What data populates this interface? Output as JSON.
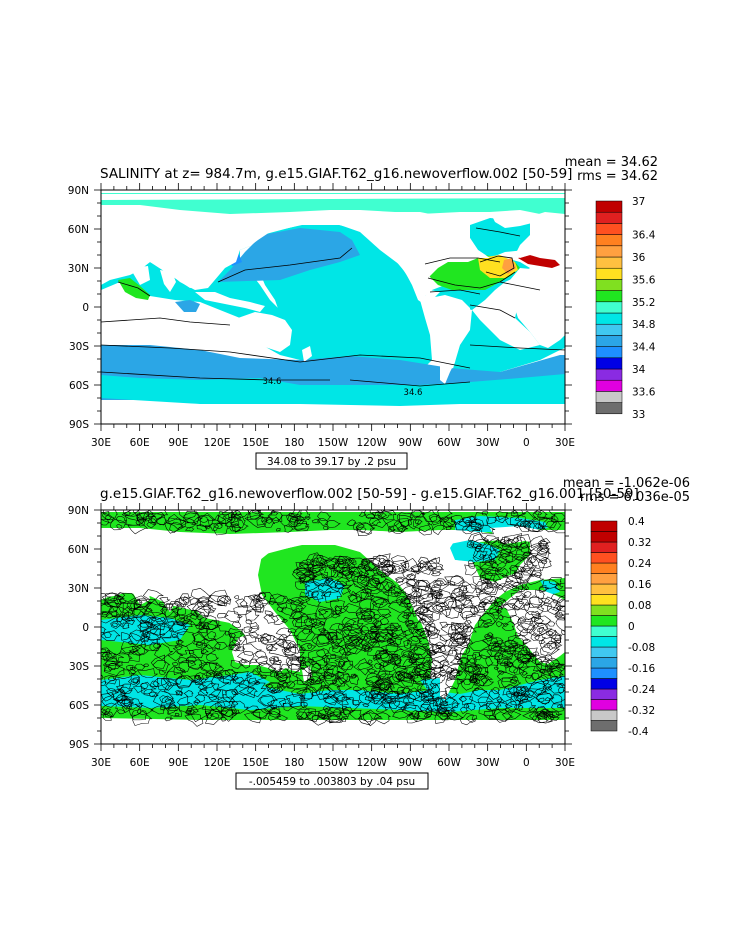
{
  "panels": [
    {
      "title": "SALINITY at z= 984.7m, g.e15.GIAF.T62_g16.newoverflow.002 [50-59]",
      "mean_text": "mean = 34.62",
      "rms_text": "rms = 34.62",
      "range_text": "34.08 to 39.17 by .2 psu",
      "lat_labels": [
        "90N",
        "60N",
        "30N",
        "0",
        "30S",
        "60S",
        "90S"
      ],
      "lon_labels": [
        "30E",
        "60E",
        "90E",
        "120E",
        "150E",
        "180",
        "150W",
        "120W",
        "90W",
        "60W",
        "30W",
        "0",
        "30E"
      ],
      "colorbar": {
        "colors": [
          "#6e6e6e",
          "#c8c8c8",
          "#e000e0",
          "#8a2be2",
          "#0000e6",
          "#1e90ff",
          "#2ba6e6",
          "#40c8f0",
          "#00e6e6",
          "#40ffd0",
          "#20e620",
          "#80e020",
          "#ffe020",
          "#ffc040",
          "#ffa040",
          "#ff8020",
          "#ff5020",
          "#e02020",
          "#c00000"
        ],
        "labels": [
          "33",
          "33.6",
          "34",
          "34.4",
          "34.8",
          "35.2",
          "35.6",
          "36",
          "36.4",
          "37"
        ],
        "label_steps": [
          0,
          2,
          4,
          6,
          8,
          10,
          12,
          14,
          16,
          19
        ]
      },
      "contour_labels": [
        "34.6",
        "34.6"
      ],
      "fill_colors": {
        "ocean_main": "#00e6e6",
        "arctic": "#40ffd0",
        "southern": "#2ba6e6",
        "npac": "#2ba6e6",
        "natl_green": "#20e620",
        "natl_yellow": "#ffe020",
        "natl_orange": "#ffa040",
        "med": "#c00000",
        "seg": "#1e90ff"
      }
    },
    {
      "title": "g.e15.GIAF.T62_g16.newoverflow.002 [50-59] - g.e15.GIAF.T62_g16.001 [50-59]",
      "mean_text": "mean = -1.062e-06",
      "rms_text": "rms = 6.036e-05",
      "range_text": "-.005459 to .003803 by .04 psu",
      "lat_labels": [
        "90N",
        "60N",
        "30N",
        "0",
        "30S",
        "60S",
        "90S"
      ],
      "lon_labels": [
        "30E",
        "60E",
        "90E",
        "120E",
        "150E",
        "180",
        "150W",
        "120W",
        "90W",
        "60W",
        "30W",
        "0",
        "30E"
      ],
      "colorbar": {
        "colors": [
          "#6e6e6e",
          "#c8c8c8",
          "#e000e0",
          "#8a2be2",
          "#0000e6",
          "#1e90ff",
          "#2ba6e6",
          "#40c8f0",
          "#00e6e6",
          "#40ffd0",
          "#20e620",
          "#80e020",
          "#ffe020",
          "#ffc040",
          "#ffa040",
          "#ff8020",
          "#ff5020",
          "#e02020",
          "#c00000",
          "#c00000"
        ],
        "labels": [
          "-0.4",
          "-0.32",
          "-0.24",
          "-0.16",
          "-0.08",
          "0",
          "0.08",
          "0.16",
          "0.24",
          "0.32",
          "0.4"
        ],
        "label_steps": [
          0,
          2,
          4,
          6,
          8,
          10,
          12,
          14,
          16,
          18,
          20
        ]
      },
      "fill_colors": {
        "ocean_main": "#20e620",
        "cyan": "#00e6e6",
        "arctic": "#20e620"
      }
    }
  ]
}
